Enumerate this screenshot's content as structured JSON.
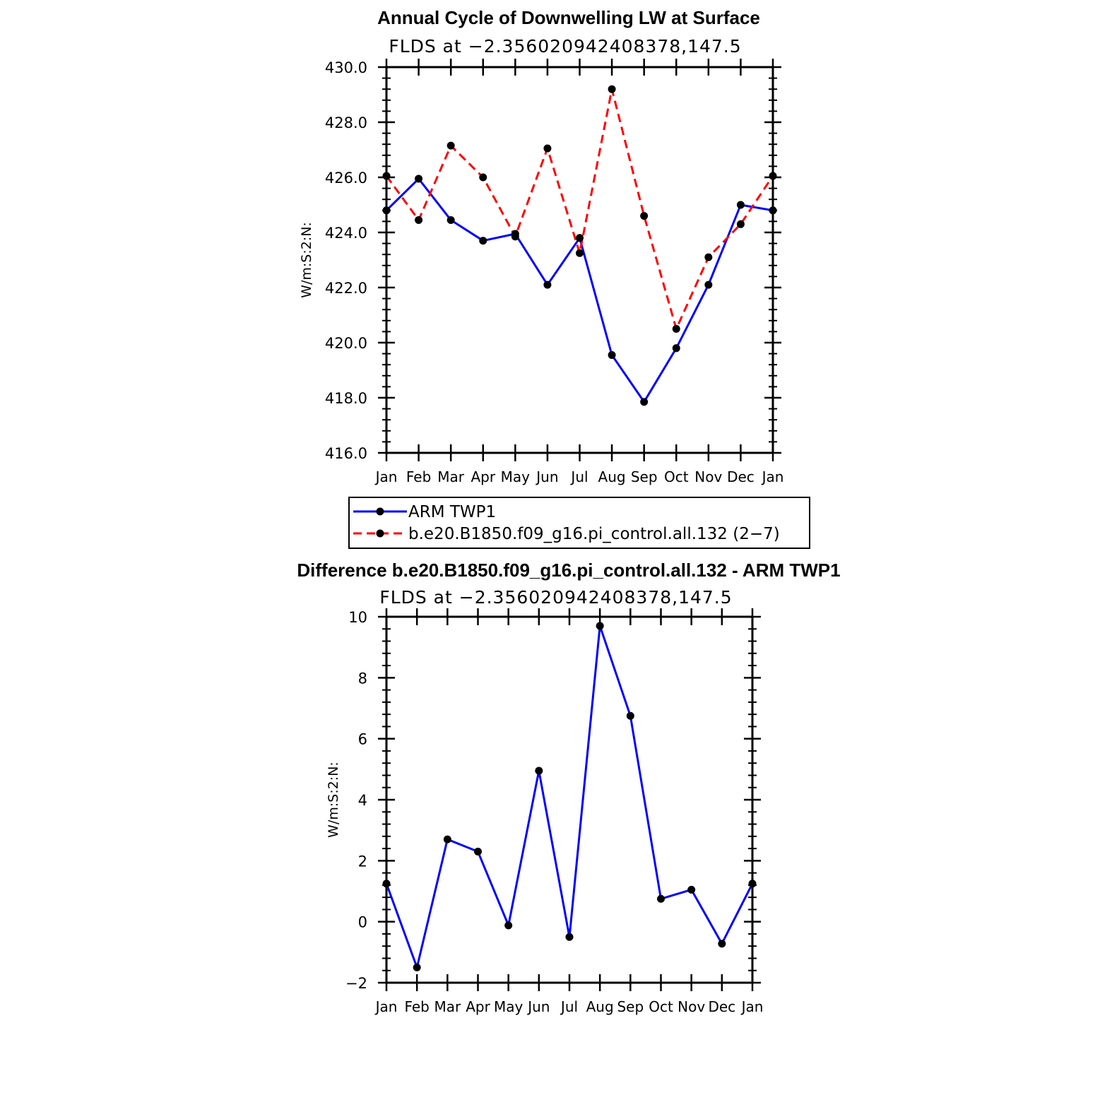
{
  "chart_data": [
    {
      "type": "line",
      "title": "Annual Cycle of Downwelling LW at Surface",
      "subtitle": "FLDS at −2.356020942408378,147.5",
      "ylabel": "W/m:S:2:N:",
      "xlabel": "",
      "ylim": [
        416.0,
        430.0
      ],
      "yticks": [
        416.0,
        418.0,
        420.0,
        422.0,
        424.0,
        426.0,
        428.0,
        430.0
      ],
      "ytick_labels": [
        "416.0",
        "418.0",
        "420.0",
        "422.0",
        "424.0",
        "426.0",
        "428.0",
        "430.0"
      ],
      "categories": [
        "Jan",
        "Feb",
        "Mar",
        "Apr",
        "May",
        "Jun",
        "Jul",
        "Aug",
        "Sep",
        "Oct",
        "Nov",
        "Dec",
        "Jan"
      ],
      "series": [
        {
          "name": "ARM  TWP1",
          "color": "#0000ff",
          "dash": "solid",
          "values": [
            424.8,
            425.95,
            424.45,
            423.7,
            423.95,
            422.1,
            423.8,
            419.55,
            417.85,
            419.8,
            422.1,
            425.0,
            424.8
          ]
        },
        {
          "name": "b.e20.B1850.f09_g16.pi_control.all.132 (2−7)",
          "color": "#ff0000",
          "dash": "dashed",
          "values": [
            426.05,
            424.45,
            427.15,
            426.0,
            423.85,
            427.05,
            423.25,
            429.2,
            424.6,
            420.5,
            423.1,
            424.3,
            426.05
          ]
        }
      ],
      "legend": "below",
      "grid": false
    },
    {
      "type": "line",
      "title": "Difference b.e20.B1850.f09_g16.pi_control.all.132 - ARM TWP1",
      "subtitle": "FLDS at −2.356020942408378,147.5",
      "ylabel": "W/m:S:2:N:",
      "xlabel": "",
      "ylim": [
        -2,
        10
      ],
      "yticks": [
        -2,
        0,
        2,
        4,
        6,
        8,
        10
      ],
      "ytick_labels": [
        "−2",
        "0",
        "2",
        "4",
        "6",
        "8",
        "10"
      ],
      "categories": [
        "Jan",
        "Feb",
        "Mar",
        "Apr",
        "May",
        "Jun",
        "Jul",
        "Aug",
        "Sep",
        "Oct",
        "Nov",
        "Dec",
        "Jan"
      ],
      "series": [
        {
          "color": "#0000ff",
          "dash": "solid",
          "values": [
            1.25,
            -1.5,
            2.7,
            2.3,
            -0.12,
            4.95,
            -0.5,
            9.7,
            6.75,
            0.75,
            1.05,
            -0.72,
            1.25
          ]
        }
      ],
      "grid": false
    }
  ]
}
